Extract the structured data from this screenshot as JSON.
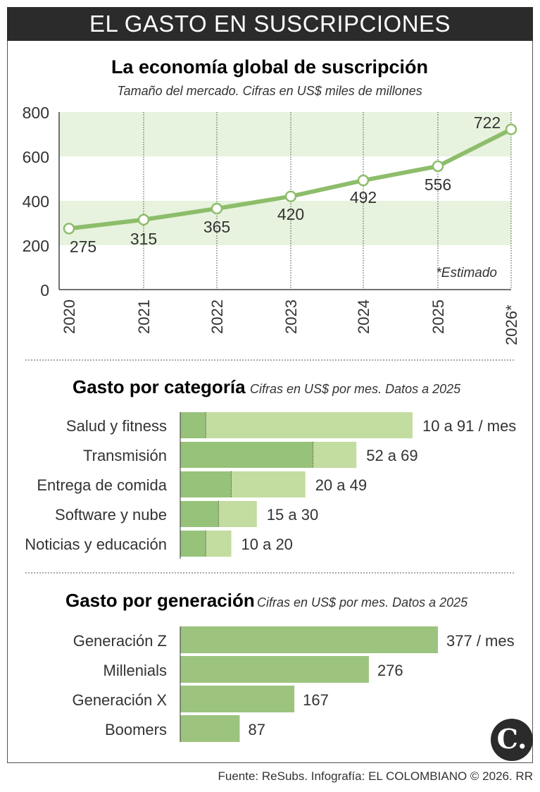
{
  "header": {
    "title": "EL GASTO EN SUSCRIPCIONES"
  },
  "chart_data": [
    {
      "type": "line",
      "title": "La economía global de suscripción",
      "subtitle": "Tamaño del mercado. Cifras en US$ miles de millones",
      "categories": [
        "2020",
        "2021",
        "2022",
        "2023",
        "2024",
        "2025",
        "2026*"
      ],
      "values": [
        275,
        315,
        365,
        420,
        492,
        556,
        722
      ],
      "ylim": [
        0,
        800
      ],
      "yticks": [
        "0",
        "200",
        "400",
        "600",
        "800"
      ],
      "note": "*Estimado",
      "color": "#8dbd6a",
      "band_color": "#e7f3de"
    },
    {
      "type": "bar",
      "title": "Gasto por categoría",
      "subtitle": "Cifras en US$ por mes. Datos a 2025",
      "categories": [
        "Salud y fitness",
        "Transmisión",
        "Entrega de comida",
        "Software y nube",
        "Noticias y educación"
      ],
      "series": [
        {
          "values": [
            10,
            52,
            20,
            15,
            10
          ]
        },
        {
          "values": [
            91,
            69,
            49,
            30,
            20
          ]
        }
      ],
      "labels": [
        "10 a 91 / mes",
        "52 a 69",
        "20 a 49",
        "15 a 30",
        "10 a 20"
      ],
      "colors": [
        "#97c27a",
        "#c3dc9f"
      ]
    },
    {
      "type": "bar",
      "title": "Gasto por generación",
      "subtitle": "Cifras en US$ por mes. Datos a 2025",
      "categories": [
        "Generación Z",
        "Millenials",
        "Generación X",
        "Boomers"
      ],
      "values": [
        377,
        276,
        167,
        87
      ],
      "labels": [
        "377 / mes",
        "276",
        "167",
        "87"
      ],
      "color": "#9cc47e"
    }
  ],
  "footer": {
    "source": "Fuente: ReSubs. Infografía: EL COLOMBIANO © 2026. RR"
  },
  "logo": {
    "text": "C."
  }
}
